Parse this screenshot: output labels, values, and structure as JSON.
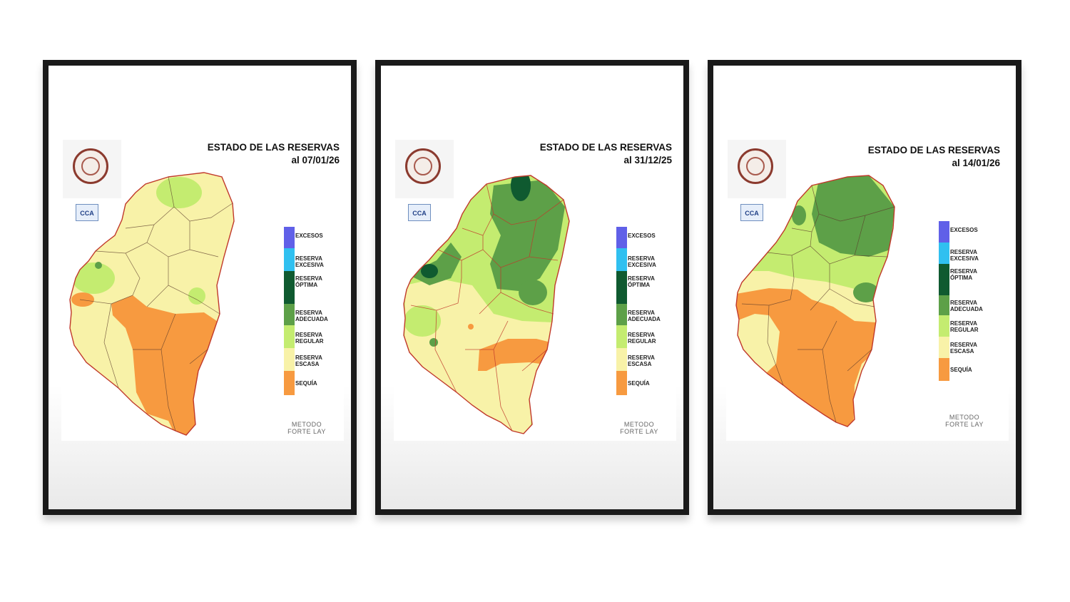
{
  "colors": {
    "excesos": "#6060e8",
    "reserva_excesiva": "#30c0f0",
    "reserva_optima": "#0f5a30",
    "reserva_adecuada": "#5da048",
    "reserva_regular": "#c4ec70",
    "reserva_escasa": "#f8f2a8",
    "sequia": "#f79a40",
    "border": "#c0392b"
  },
  "legend": [
    {
      "label": "EXCESOS",
      "color": "#6060e8"
    },
    {
      "label": "RESERVA\nEXCESIVA",
      "color": "#30c0f0"
    },
    {
      "label": "RESERVA\nÓPTIMA",
      "color": "#0f5a30"
    },
    {
      "label": "RESERVA\nADECUADA",
      "color": "#5da048"
    },
    {
      "label": "RESERVA\nREGULAR",
      "color": "#c4ec70"
    },
    {
      "label": "RESERVA\nESCASA",
      "color": "#f8f2a8"
    },
    {
      "label": "SEQUÍA",
      "color": "#f79a40"
    }
  ],
  "panels": [
    {
      "title": "ESTADO DE LAS RESERVAS",
      "date": "al 07/01/26",
      "method": "METODO\nFORTE LAY",
      "logo": "CCA",
      "seal_icon": "institution-seal-icon"
    },
    {
      "title": "ESTADO DE LAS RESERVAS",
      "date": "al 31/12/25",
      "method": "METODO\nFORTE LAY",
      "logo": "CCA",
      "seal_icon": "institution-seal-icon"
    },
    {
      "title": "ESTADO DE LAS RESERVAS",
      "date": "al 14/01/26",
      "method": "METODO\nFORTE LAY",
      "logo": "CCA",
      "seal_icon": "institution-seal-icon"
    }
  ]
}
